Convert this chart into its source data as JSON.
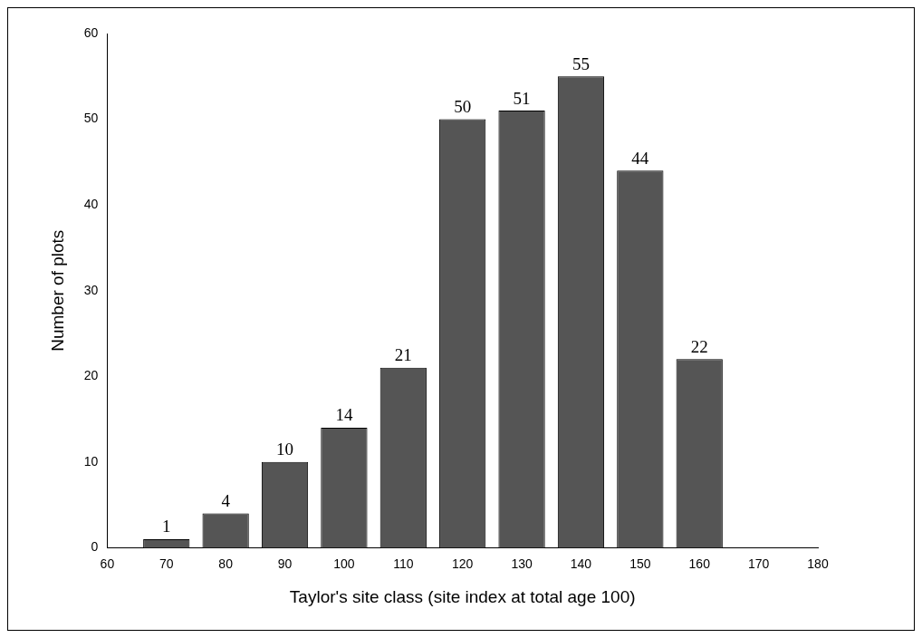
{
  "chart_data": {
    "type": "bar",
    "xlabel": "Taylor's site class (site index at total age 100)",
    "ylabel": "Number of plots",
    "x": [
      70,
      80,
      90,
      100,
      110,
      120,
      130,
      140,
      150,
      160
    ],
    "values": [
      1,
      4,
      10,
      14,
      21,
      50,
      51,
      55,
      44,
      22
    ],
    "color": "#555555",
    "xlim": [
      60,
      180
    ],
    "xticks": [
      60,
      70,
      80,
      90,
      100,
      110,
      120,
      130,
      140,
      150,
      160,
      170,
      180
    ],
    "ylim": [
      0,
      60
    ],
    "yticks": [
      0,
      10,
      20,
      30,
      40,
      50,
      60
    ],
    "data_labels": true
  }
}
